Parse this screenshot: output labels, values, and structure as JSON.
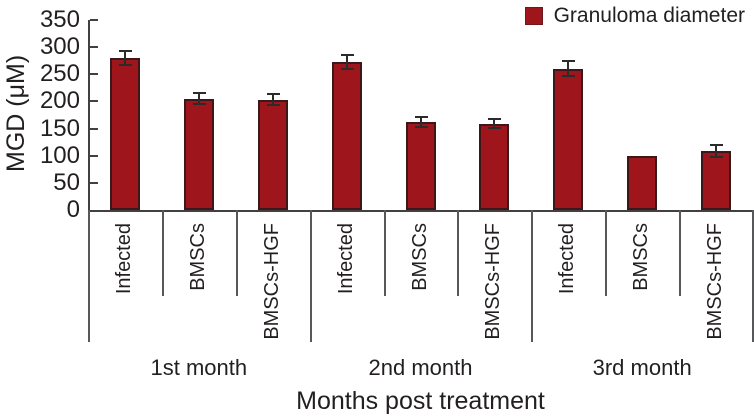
{
  "chart_data": {
    "type": "bar",
    "ylabel": "MGD (μM)",
    "xlabel": "Months post treatment",
    "ylim": [
      0,
      350
    ],
    "yticks": [
      0,
      50,
      100,
      150,
      200,
      250,
      300,
      350
    ],
    "grid": false,
    "legend_position": "top-right",
    "legend": [
      {
        "label": "Granuloma diameter",
        "color": "#9e151b"
      }
    ],
    "groups": [
      {
        "label": "1st month",
        "bars": [
          {
            "category": "Infected",
            "value": 280,
            "error": 12
          },
          {
            "category": "BMSCs",
            "value": 205,
            "error": 10
          },
          {
            "category": "BMSCs-HGF",
            "value": 203,
            "error": 10
          }
        ]
      },
      {
        "label": "2nd month",
        "bars": [
          {
            "category": "Infected",
            "value": 272,
            "error": 13
          },
          {
            "category": "BMSCs",
            "value": 162,
            "error": 10
          },
          {
            "category": "BMSCs-HGF",
            "value": 159,
            "error": 8
          }
        ]
      },
      {
        "label": "3rd month",
        "bars": [
          {
            "category": "Infected",
            "value": 260,
            "error": 14
          },
          {
            "category": "BMSCs",
            "value": 100,
            "error": 0
          },
          {
            "category": "BMSCs-HGF",
            "value": 108,
            "error": 11
          }
        ]
      }
    ],
    "colors": {
      "bar_fill": "#9e151b",
      "bar_border": "#3c181b",
      "error_bar": "#2b2b2b",
      "axis": "#414042",
      "separator": "#57585a",
      "text": "#231f20"
    }
  }
}
